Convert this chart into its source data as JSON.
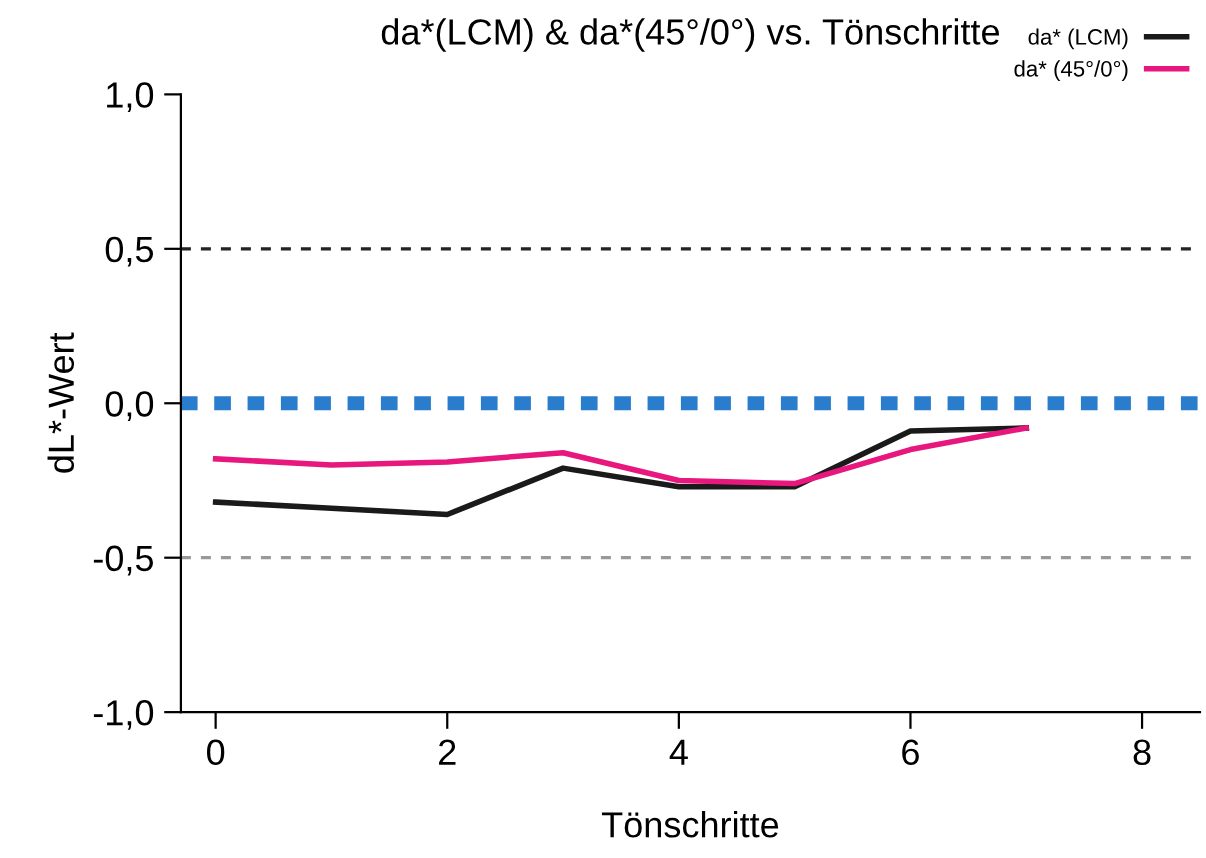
{
  "chart_data": {
    "type": "line",
    "title": "da*(LCM) & da*(45°/0°) vs. Tönschritte",
    "xlabel": "Tönschritte",
    "ylabel": "dL*-Wert",
    "x": [
      0,
      1,
      2,
      3,
      4,
      5,
      6,
      7
    ],
    "series": [
      {
        "name": "da* (LCM)",
        "color": "#1a1a1a",
        "values": [
          -0.32,
          -0.34,
          -0.36,
          -0.21,
          -0.27,
          -0.27,
          -0.09,
          -0.08
        ]
      },
      {
        "name": "da* (45°/0°)",
        "color": "#e8177d",
        "values": [
          -0.18,
          -0.2,
          -0.19,
          -0.16,
          -0.25,
          -0.26,
          -0.15,
          -0.08
        ]
      }
    ],
    "xlim": [
      -0.3,
      8.5
    ],
    "ylim": [
      -1,
      1
    ],
    "xticks": [
      0,
      2,
      4,
      6,
      8
    ],
    "yticks": [
      {
        "value": -1,
        "label": "-1,0"
      },
      {
        "value": -0.5,
        "label": "-0,5"
      },
      {
        "value": 0,
        "label": "0,0"
      },
      {
        "value": 0.5,
        "label": "0,5"
      },
      {
        "value": 1,
        "label": "1,0"
      }
    ],
    "ref_lines": [
      {
        "axis": "y",
        "value": 0.5,
        "color": "#222222",
        "line_style": "dashed"
      },
      {
        "axis": "y",
        "value": 0,
        "color": "#2a7ccc",
        "line_style": "dotted"
      },
      {
        "axis": "y",
        "value": -0.5,
        "color": "#999999",
        "line_style": "dashed"
      }
    ],
    "grid": false,
    "legend": "top right",
    "marker": "none",
    "line_style": "solid"
  }
}
